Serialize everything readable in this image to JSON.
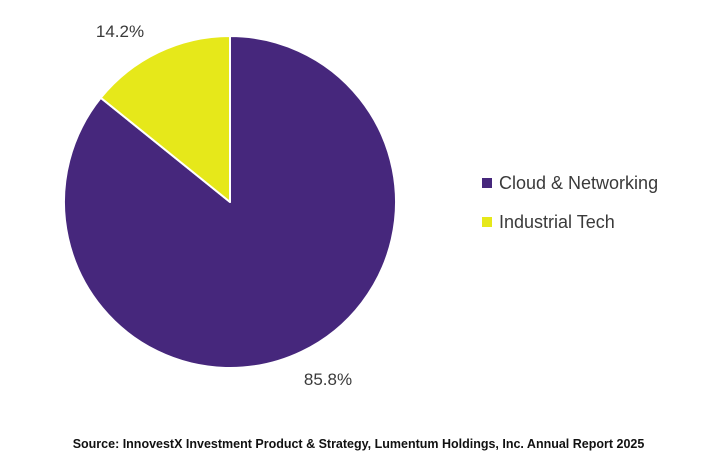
{
  "chart_data": {
    "type": "pie",
    "title": "",
    "slices": [
      {
        "name": "Cloud & Networking",
        "value": 85.8,
        "label": "85.8%",
        "color": "#46277c"
      },
      {
        "name": "Industrial Tech",
        "value": 14.2,
        "label": "14.2%",
        "color": "#e6e81a"
      }
    ],
    "legend_position": "right",
    "start_angle": "12 o'clock, clockwise"
  },
  "legend": {
    "items": [
      {
        "label": "Cloud & Networking",
        "color": "#46277c"
      },
      {
        "label": "Industrial Tech",
        "color": "#e6e81a"
      }
    ]
  },
  "source": "Source: InnovestX Investment Product & Strategy, Lumentum Holdings, Inc. Annual Report 2025"
}
